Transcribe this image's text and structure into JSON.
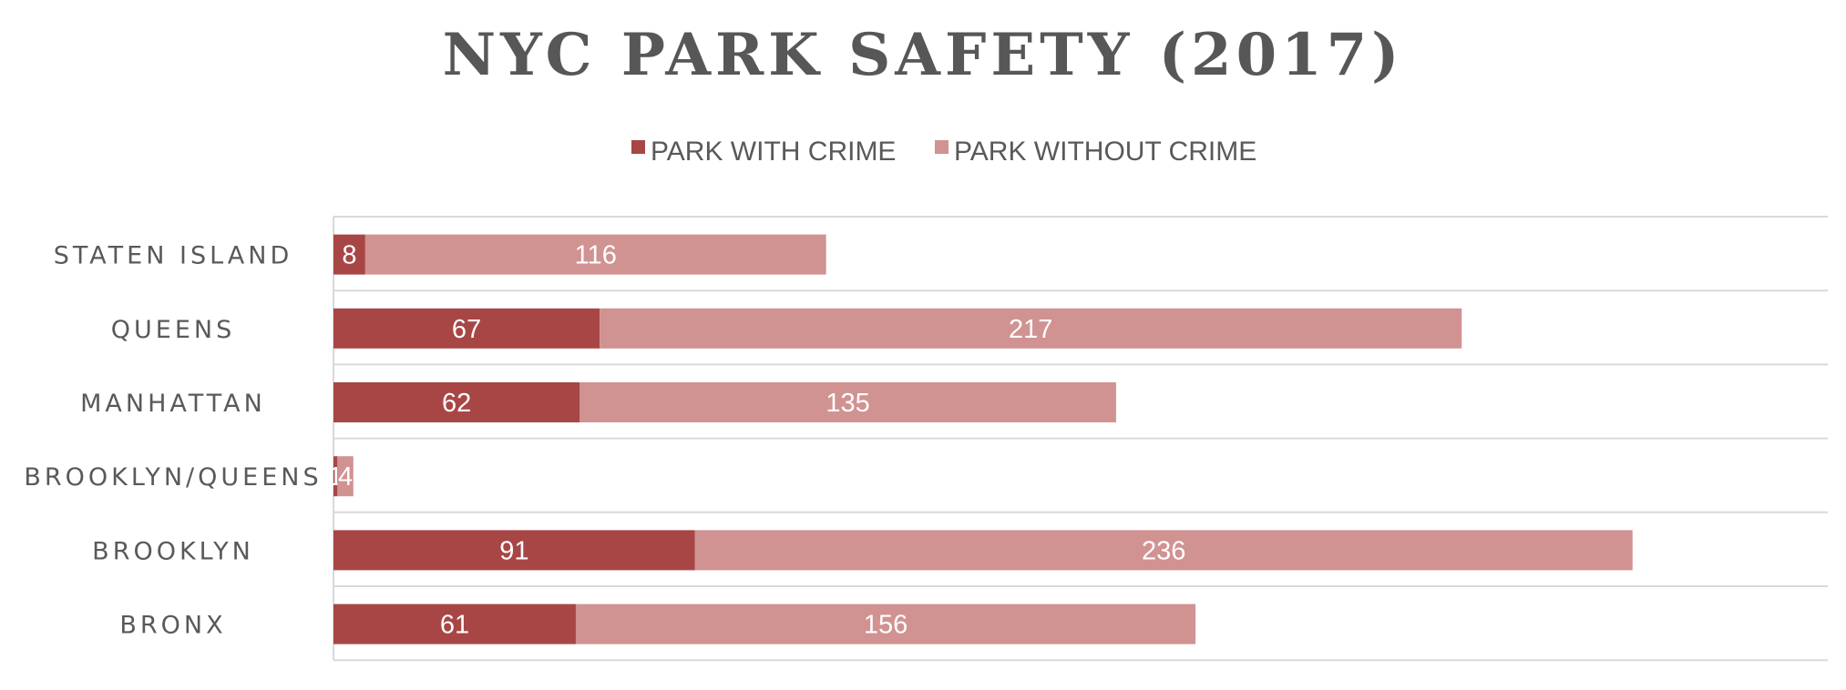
{
  "chart_data": {
    "type": "bar",
    "orientation": "horizontal",
    "stacked": true,
    "title": "NYC PARK SAFETY (2017)",
    "categories": [
      "STATEN ISLAND",
      "QUEENS",
      "MANHATTAN",
      "BROOKLYN/QUEENS",
      "BROOKLYN",
      "BRONX"
    ],
    "series": [
      {
        "name": "PARK WITH CRIME",
        "color": "#a84646",
        "values": [
          8,
          67,
          62,
          1,
          91,
          61
        ],
        "labels": [
          "8",
          "67",
          "62",
          "1",
          "91",
          "61"
        ]
      },
      {
        "name": "PARK WITHOUT CRIME",
        "color": "#d19292",
        "values": [
          116,
          217,
          135,
          4,
          236,
          156
        ],
        "labels": [
          "116",
          "217",
          "135",
          "4",
          "236",
          "156"
        ]
      }
    ],
    "xlim": [
      0,
      350
    ],
    "grid": true,
    "legend_position": "top"
  }
}
